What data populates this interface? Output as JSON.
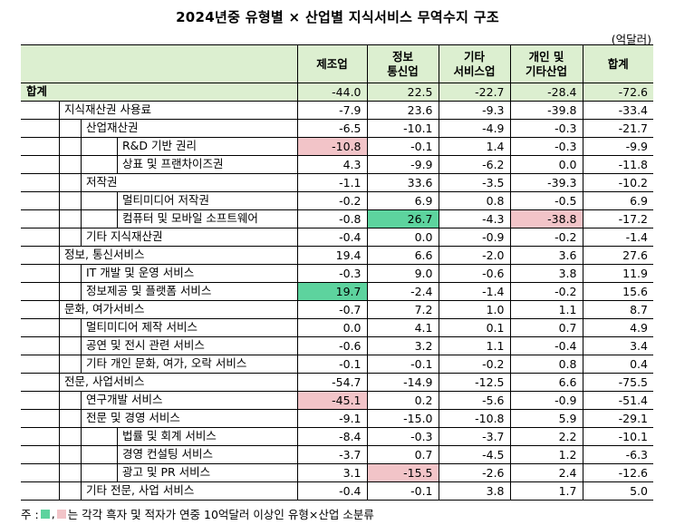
{
  "title": "2024년중 유형별 × 산업별 지식서비스 무역수지 구조",
  "unit": "(억달러)",
  "columns": [
    "제조업",
    "정보\n통신업",
    "기타\n서비스업",
    "개인 및\n기타산업",
    "합계"
  ],
  "rows": [
    {
      "label": "합계",
      "level": 0,
      "values": [
        "-44.0",
        "22.5",
        "-22.7",
        "-28.4",
        "-72.6"
      ],
      "hl": [
        null,
        null,
        null,
        null,
        null
      ]
    },
    {
      "label": "지식재산권 사용료",
      "level": 1,
      "values": [
        "-7.9",
        "23.6",
        "-9.3",
        "-39.8",
        "-33.4"
      ],
      "hl": [
        null,
        null,
        null,
        null,
        null
      ]
    },
    {
      "label": "산업재산권",
      "level": 2,
      "values": [
        "-6.5",
        "-10.1",
        "-4.9",
        "-0.3",
        "-21.7"
      ],
      "hl": [
        null,
        null,
        null,
        null,
        null
      ]
    },
    {
      "label": "R&D 기반 권리",
      "level": 3,
      "values": [
        "-10.8",
        "-0.1",
        "1.4",
        "-0.3",
        "-9.9"
      ],
      "hl": [
        "pink",
        null,
        null,
        null,
        null
      ]
    },
    {
      "label": "상표 및 프랜차이즈권",
      "level": 3,
      "values": [
        "4.3",
        "-9.9",
        "-6.2",
        "0.0",
        "-11.8"
      ],
      "hl": [
        null,
        null,
        null,
        null,
        null
      ]
    },
    {
      "label": "저작권",
      "level": 2,
      "values": [
        "-1.1",
        "33.6",
        "-3.5",
        "-39.3",
        "-10.2"
      ],
      "hl": [
        null,
        null,
        null,
        null,
        null
      ]
    },
    {
      "label": "멀티미디어 저작권",
      "level": 3,
      "values": [
        "-0.2",
        "6.9",
        "0.8",
        "-0.5",
        "6.9"
      ],
      "hl": [
        null,
        null,
        null,
        null,
        null
      ]
    },
    {
      "label": "컴퓨터 및 모바일 소프트웨어",
      "level": 3,
      "values": [
        "-0.8",
        "26.7",
        "-4.3",
        "-38.8",
        "-17.2"
      ],
      "hl": [
        null,
        "green",
        null,
        "pink",
        null
      ]
    },
    {
      "label": "기타 지식재산권",
      "level": 2,
      "values": [
        "-0.4",
        "0.0",
        "-0.9",
        "-0.2",
        "-1.4"
      ],
      "hl": [
        null,
        null,
        null,
        null,
        null
      ]
    },
    {
      "label": "정보, 통신서비스",
      "level": 1,
      "values": [
        "19.4",
        "6.6",
        "-2.0",
        "3.6",
        "27.6"
      ],
      "hl": [
        null,
        null,
        null,
        null,
        null
      ]
    },
    {
      "label": "IT 개발 및 운영 서비스",
      "level": 2,
      "values": [
        "-0.3",
        "9.0",
        "-0.6",
        "3.8",
        "11.9"
      ],
      "hl": [
        null,
        null,
        null,
        null,
        null
      ]
    },
    {
      "label": "정보제공 및 플랫폼 서비스",
      "level": 2,
      "values": [
        "19.7",
        "-2.4",
        "-1.4",
        "-0.2",
        "15.6"
      ],
      "hl": [
        "green",
        null,
        null,
        null,
        null
      ]
    },
    {
      "label": "문화, 여가서비스",
      "level": 1,
      "values": [
        "-0.7",
        "7.2",
        "1.0",
        "1.1",
        "8.7"
      ],
      "hl": [
        null,
        null,
        null,
        null,
        null
      ]
    },
    {
      "label": "멀티미디어 제작 서비스",
      "level": 2,
      "values": [
        "0.0",
        "4.1",
        "0.1",
        "0.7",
        "4.9"
      ],
      "hl": [
        null,
        null,
        null,
        null,
        null
      ]
    },
    {
      "label": "공연 및 전시 관련 서비스",
      "level": 2,
      "values": [
        "-0.6",
        "3.2",
        "1.1",
        "-0.4",
        "3.4"
      ],
      "hl": [
        null,
        null,
        null,
        null,
        null
      ]
    },
    {
      "label": "기타 개인 문화, 여가, 오락 서비스",
      "level": 2,
      "values": [
        "-0.1",
        "-0.1",
        "-0.2",
        "0.8",
        "0.4"
      ],
      "hl": [
        null,
        null,
        null,
        null,
        null
      ]
    },
    {
      "label": "전문, 사업서비스",
      "level": 1,
      "values": [
        "-54.7",
        "-14.9",
        "-12.5",
        "6.6",
        "-75.5"
      ],
      "hl": [
        null,
        null,
        null,
        null,
        null
      ]
    },
    {
      "label": "연구개발 서비스",
      "level": 2,
      "values": [
        "-45.1",
        "0.2",
        "-5.6",
        "-0.9",
        "-51.4"
      ],
      "hl": [
        "pink",
        null,
        null,
        null,
        null
      ]
    },
    {
      "label": "전문 및 경영 서비스",
      "level": 2,
      "values": [
        "-9.1",
        "-15.0",
        "-10.8",
        "5.9",
        "-29.1"
      ],
      "hl": [
        null,
        null,
        null,
        null,
        null
      ]
    },
    {
      "label": "법률 및 회계 서비스",
      "level": 3,
      "values": [
        "-8.4",
        "-0.3",
        "-3.7",
        "2.2",
        "-10.1"
      ],
      "hl": [
        null,
        null,
        null,
        null,
        null
      ]
    },
    {
      "label": "경영 컨설팅 서비스",
      "level": 3,
      "values": [
        "-3.7",
        "0.7",
        "-4.5",
        "1.2",
        "-6.3"
      ],
      "hl": [
        null,
        null,
        null,
        null,
        null
      ]
    },
    {
      "label": "광고 및 PR 서비스",
      "level": 3,
      "values": [
        "3.1",
        "-15.5",
        "-2.6",
        "2.4",
        "-12.6"
      ],
      "hl": [
        null,
        "pink",
        null,
        null,
        null
      ]
    },
    {
      "label": "기타 전문, 사업 서비스",
      "level": 2,
      "values": [
        "-0.4",
        "-0.1",
        "3.8",
        "1.7",
        "5.0"
      ],
      "hl": [
        null,
        null,
        null,
        null,
        null
      ]
    }
  ],
  "note": {
    "prefix": "주 : ",
    "sep": ",",
    "text": " 는 각각 흑자 및 적자가 연중 10억달러 이상인 유형×산업 소분류"
  },
  "colors": {
    "header_bg": "#dcefd0",
    "green": "#5dd39e",
    "pink": "#f2c4c8"
  }
}
